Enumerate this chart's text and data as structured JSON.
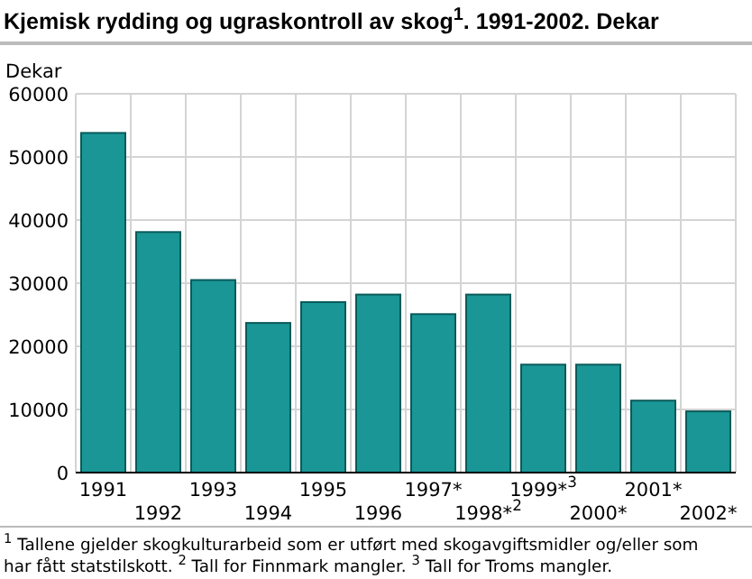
{
  "chart_data": {
    "type": "bar",
    "title": "Kjemisk rydding og ugraskontroll av skog$^{1}$. 1991-2002. Dekar",
    "ylabel": "Dekar",
    "categories": [
      "1991",
      "1992",
      "1993",
      "1994",
      "1995",
      "1996",
      "1997*",
      "1998*$^{2}$",
      "1999*$^{3}$",
      "2000*",
      "2001*",
      "2002*"
    ],
    "values": [
      53800,
      38100,
      30500,
      23700,
      27000,
      28200,
      25100,
      28200,
      17100,
      17100,
      11400,
      9700
    ],
    "color": "#1a9696",
    "ylim": [
      0,
      60000
    ],
    "yticks": [
      0,
      10000,
      20000,
      30000,
      40000,
      50000,
      60000
    ],
    "grid": true,
    "annotations": [
      "$^{1}$ Tallene gjelder skogkulturarbeid som er utført med skogavgiftsmidler og/eller som",
      "har fått statstilskott. $^{2}$ Tall for Finnmark mangler. $^{3}$ Tall for Troms mangler."
    ]
  }
}
